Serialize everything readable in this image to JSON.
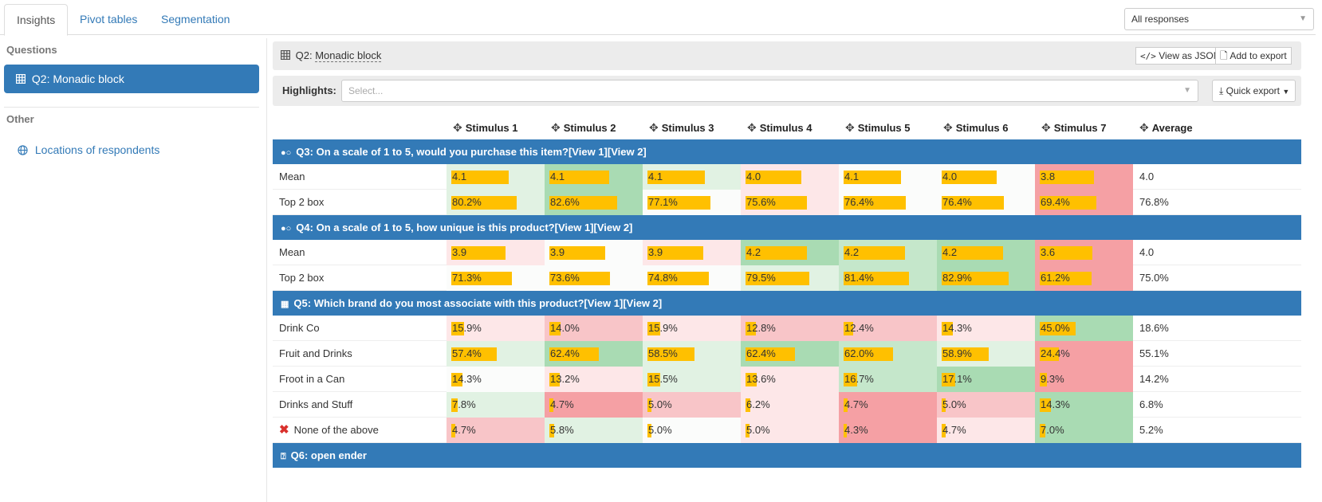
{
  "tabs": [
    "Insights",
    "Pivot tables",
    "Segmentation"
  ],
  "responses_filter": "All responses",
  "sidebar": {
    "questions_heading": "Questions",
    "active_item": "Q2: Monadic block",
    "other_heading": "Other",
    "other_link": "Locations of respondents"
  },
  "header": {
    "title": "Q2:",
    "title_link": "Monadic block",
    "view_json": "View as JSON",
    "add_export": "Add to export"
  },
  "highlights": {
    "label": "Highlights:",
    "placeholder": "Select...",
    "quick_export": "Quick export"
  },
  "columns": [
    "Stimulus 1",
    "Stimulus 2",
    "Stimulus 3",
    "Stimulus 4",
    "Stimulus 5",
    "Stimulus 6",
    "Stimulus 7",
    "Average"
  ],
  "colors": {
    "accent": "#337ab7",
    "bar": "#ffc000",
    "green_strong": "#a9dbb3",
    "green_mid": "#c5e7cb",
    "green_light": "#e1f2e3",
    "neutral": "#fbfcfb",
    "pink_light": "#fde7e8",
    "pink_mid": "#f8c5c8",
    "red_strong": "#f5a0a4"
  },
  "sections": [
    {
      "title": "Q3: On a scale of 1 to 5, would you purchase this item?[View 1][View 2]",
      "icon": "rating-scale-icon",
      "rows": [
        {
          "label": "Mean",
          "values": [
            "4.1",
            "4.1",
            "4.1",
            "4.0",
            "4.1",
            "4.0",
            "3.8"
          ],
          "bars": [
            0.72,
            0.75,
            0.72,
            0.7,
            0.72,
            0.69,
            0.68
          ],
          "shades": [
            "green_light",
            "green_strong",
            "green_light",
            "pink_light",
            "neutral",
            "neutral",
            "red_strong"
          ],
          "average": "4.0"
        },
        {
          "label": "Top 2 box",
          "values": [
            "80.2%",
            "82.6%",
            "77.1%",
            "75.6%",
            "76.4%",
            "76.4%",
            "69.4%"
          ],
          "bars": [
            0.82,
            0.85,
            0.79,
            0.77,
            0.78,
            0.78,
            0.71
          ],
          "shades": [
            "green_light",
            "green_strong",
            "neutral",
            "pink_light",
            "neutral",
            "neutral",
            "red_strong"
          ],
          "average": "76.8%"
        }
      ]
    },
    {
      "title": "Q4: On a scale of 1 to 5, how unique is this product?[View 1][View 2]",
      "icon": "rating-scale-icon",
      "rows": [
        {
          "label": "Mean",
          "values": [
            "3.9",
            "3.9",
            "3.9",
            "4.2",
            "4.2",
            "4.2",
            "3.6"
          ],
          "bars": [
            0.68,
            0.7,
            0.7,
            0.77,
            0.77,
            0.77,
            0.66
          ],
          "shades": [
            "pink_light",
            "neutral",
            "pink_light",
            "green_strong",
            "green_mid",
            "green_strong",
            "red_strong"
          ],
          "average": "4.0"
        },
        {
          "label": "Top 2 box",
          "values": [
            "71.3%",
            "73.6%",
            "74.8%",
            "79.5%",
            "81.4%",
            "82.9%",
            "61.2%"
          ],
          "bars": [
            0.76,
            0.76,
            0.77,
            0.8,
            0.82,
            0.84,
            0.65
          ],
          "shades": [
            "neutral",
            "neutral",
            "neutral",
            "green_light",
            "green_mid",
            "green_strong",
            "red_strong"
          ],
          "average": "75.0%"
        }
      ]
    },
    {
      "title": "Q5: Which brand do you most associate with this product?[View 1][View 2]",
      "icon": "multiple-choice-icon",
      "rows": [
        {
          "label": "Drink Co",
          "values": [
            "15.9%",
            "14.0%",
            "15.9%",
            "12.8%",
            "12.4%",
            "14.3%",
            "45.0%"
          ],
          "bars": [
            0.159,
            0.14,
            0.159,
            0.128,
            0.124,
            0.143,
            0.45
          ],
          "shades": [
            "pink_light",
            "pink_mid",
            "pink_light",
            "pink_mid",
            "pink_mid",
            "pink_light",
            "green_strong"
          ],
          "average": "18.6%"
        },
        {
          "label": "Fruit and Drinks",
          "values": [
            "57.4%",
            "62.4%",
            "58.5%",
            "62.4%",
            "62.0%",
            "58.9%",
            "24.4%"
          ],
          "bars": [
            0.574,
            0.624,
            0.585,
            0.624,
            0.62,
            0.589,
            0.244
          ],
          "shades": [
            "green_light",
            "green_strong",
            "green_light",
            "green_strong",
            "green_mid",
            "green_light",
            "red_strong"
          ],
          "average": "55.1%"
        },
        {
          "label": "Froot in a Can",
          "values": [
            "14.3%",
            "13.2%",
            "15.5%",
            "13.6%",
            "16.7%",
            "17.1%",
            "9.3%"
          ],
          "bars": [
            0.143,
            0.132,
            0.155,
            0.136,
            0.167,
            0.171,
            0.093
          ],
          "shades": [
            "neutral",
            "pink_light",
            "green_light",
            "pink_light",
            "green_mid",
            "green_strong",
            "red_strong"
          ],
          "average": "14.2%"
        },
        {
          "label": "Drinks and Stuff",
          "values": [
            "7.8%",
            "4.7%",
            "5.0%",
            "6.2%",
            "4.7%",
            "5.0%",
            "14.3%"
          ],
          "bars": [
            0.078,
            0.047,
            0.05,
            0.062,
            0.047,
            0.05,
            0.143
          ],
          "shades": [
            "green_light",
            "red_strong",
            "pink_mid",
            "pink_light",
            "red_strong",
            "pink_mid",
            "green_strong"
          ],
          "average": "6.8%"
        },
        {
          "label": "None of the above",
          "none": true,
          "values": [
            "4.7%",
            "5.8%",
            "5.0%",
            "5.0%",
            "4.3%",
            "4.7%",
            "7.0%"
          ],
          "bars": [
            0.047,
            0.058,
            0.05,
            0.05,
            0.043,
            0.047,
            0.07
          ],
          "shades": [
            "pink_mid",
            "green_light",
            "neutral",
            "pink_light",
            "red_strong",
            "pink_light",
            "green_strong"
          ],
          "average": "5.2%"
        }
      ]
    },
    {
      "title": "Q6: open ender",
      "icon": "open-question-icon",
      "rows": []
    }
  ]
}
